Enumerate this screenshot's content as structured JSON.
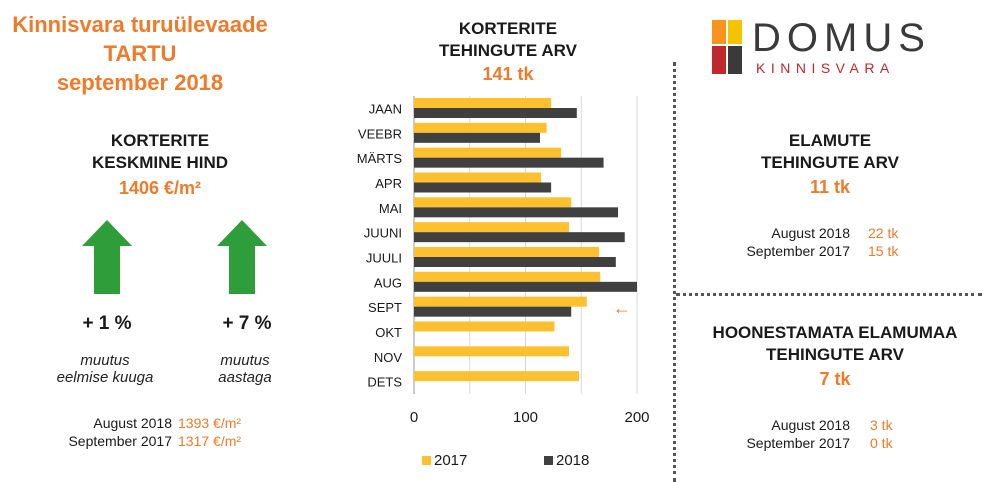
{
  "header": {
    "title_line1": "Kinnisvara turuülevaade",
    "title_line2": "TARTU",
    "title_line3": "september 2018"
  },
  "price": {
    "title_line1": "KORTERITE",
    "title_line2": "KESKMINE HIND",
    "value": "1406 €/m²",
    "change_month": "+ 1 %",
    "change_month_caption1": "muutus",
    "change_month_caption2": "eelmise kuuga",
    "change_year": "+ 7 %",
    "change_year_caption1": "muutus",
    "change_year_caption2": "aastaga",
    "compare": [
      {
        "label": "August 2018",
        "value": "1393 €/m²"
      },
      {
        "label": "September 2017",
        "value": "1317 €/m²"
      }
    ],
    "arrow_color": "#2e9e3a"
  },
  "logo": {
    "name": "DOMUS",
    "sub": "KINNISVARA",
    "colors": [
      "#f7941d",
      "#f5c400",
      "#c0282d",
      "#3a3a3a"
    ]
  },
  "houses": {
    "title_line1": "ELAMUTE",
    "title_line2": "TEHINGUTE ARV",
    "value": "11 tk",
    "compare": [
      {
        "label": "August 2018",
        "value": "22 tk"
      },
      {
        "label": "September 2017",
        "value": "15 tk"
      }
    ]
  },
  "land": {
    "title_line1": "HOONESTAMATA ELAMUMAA",
    "title_line2": "TEHINGUTE ARV",
    "value": "7 tk",
    "compare": [
      {
        "label": "August 2018",
        "value": "3 tk"
      },
      {
        "label": "September 2017",
        "value": "0 tk"
      }
    ]
  },
  "chart_data": {
    "type": "bar",
    "orientation": "horizontal",
    "title_line1": "KORTERITE",
    "title_line2": "TEHINGUTE ARV",
    "subtitle": "141 tk",
    "categories": [
      "JAAN",
      "VEEBR",
      "MÄRTS",
      "APR",
      "MAI",
      "JUUNI",
      "JUULI",
      "AUG",
      "SEPT",
      "OKT",
      "NOV",
      "DETS"
    ],
    "series": [
      {
        "name": "2017",
        "color": "#fdc02f",
        "values": [
          123,
          119,
          132,
          114,
          141,
          139,
          166,
          167,
          155,
          126,
          139,
          148
        ]
      },
      {
        "name": "2018",
        "color": "#404040",
        "values": [
          146,
          113,
          170,
          123,
          183,
          189,
          181,
          200,
          141,
          null,
          null,
          null
        ]
      }
    ],
    "xlim": [
      0,
      200
    ],
    "xticks": [
      "0",
      "100",
      "200"
    ],
    "legend_position": "bottom",
    "annotation": "←",
    "annotation_color": "#ef7a2a",
    "grid": true
  }
}
